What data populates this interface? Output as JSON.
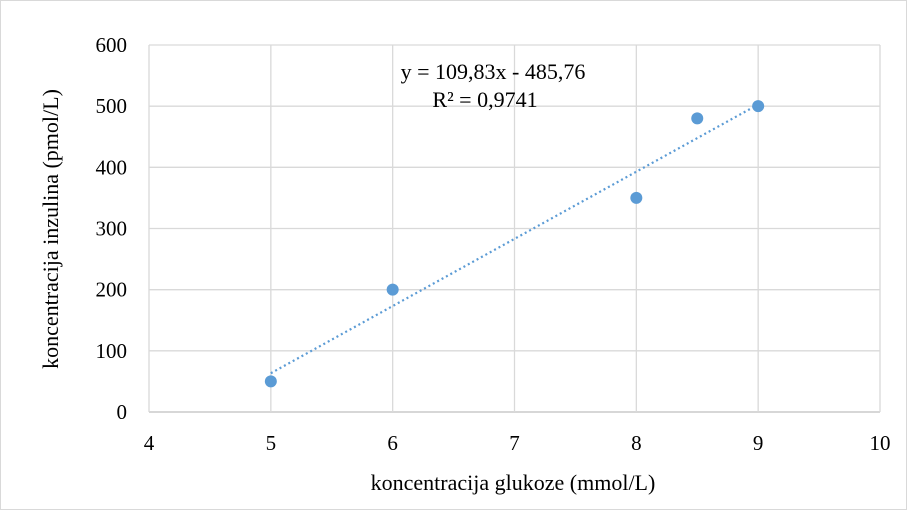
{
  "chart_data": {
    "type": "scatter",
    "title": "",
    "xlabel": "koncentracija glukoze (mmol/L)",
    "ylabel": "koncentracija inzulina (pmol/L)",
    "xlim": [
      4,
      10
    ],
    "ylim": [
      0,
      600
    ],
    "xticks": [
      4,
      5,
      6,
      7,
      8,
      9,
      10
    ],
    "yticks": [
      0,
      100,
      200,
      300,
      400,
      500,
      600
    ],
    "grid": "vertical and horizontal major gridlines",
    "legend": "none",
    "series": [
      {
        "marker_color": "#5B9BD5",
        "points": [
          {
            "x": 5,
            "y": 50
          },
          {
            "x": 6,
            "y": 200
          },
          {
            "x": 8,
            "y": 350
          },
          {
            "x": 8.5,
            "y": 480
          },
          {
            "x": 9,
            "y": 500
          }
        ]
      }
    ],
    "trendline": {
      "type": "linear",
      "style": "dotted",
      "color": "#5B9BD5",
      "slope": 109.83,
      "intercept": -485.76,
      "x_range": [
        5,
        9
      ],
      "equation_label": "y = 109,83x - 485,76",
      "r2_label": "R² = 0,9741"
    }
  }
}
